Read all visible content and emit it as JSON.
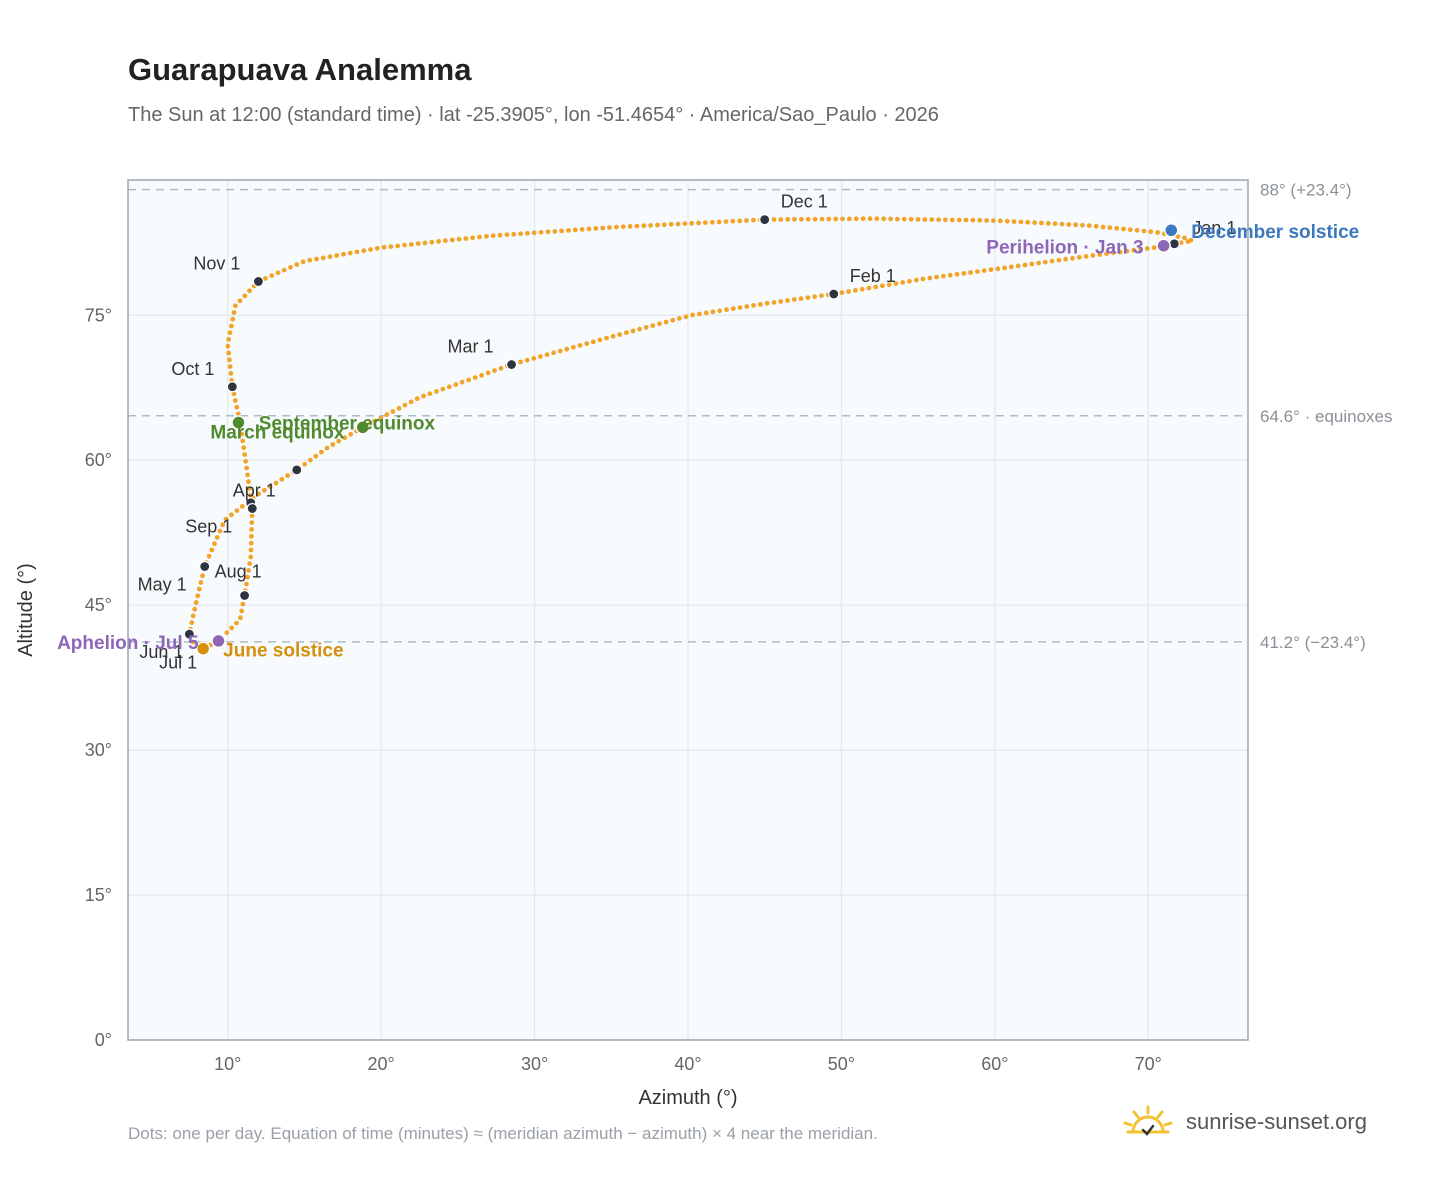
{
  "chart_data": {
    "type": "scatter",
    "title": "Guarapuava Analemma",
    "subtitle": "The Sun at 12:00 (standard time) · lat -25.3905°, lon -51.4654° · America/Sao_Paulo · 2026",
    "xlabel": "Azimuth (°)",
    "ylabel": "Altitude (°)",
    "xlim": [
      3.5,
      76.5
    ],
    "ylim": [
      0,
      89
    ],
    "xticks": [
      10,
      20,
      30,
      40,
      50,
      60,
      70
    ],
    "yticks": [
      0,
      15,
      30,
      45,
      60,
      75
    ],
    "xtick_labels": [
      "10°",
      "20°",
      "30°",
      "40°",
      "50°",
      "60°",
      "70°"
    ],
    "ytick_labels": [
      "0°",
      "15°",
      "30°",
      "45°",
      "60°",
      "75°"
    ],
    "grid": true,
    "reference_lines": [
      {
        "y": 88.0,
        "label": "88° (+23.4°)"
      },
      {
        "y": 64.6,
        "label": "64.6° · equinoxes"
      },
      {
        "y": 41.2,
        "label": "41.2° (−23.4°)"
      }
    ],
    "analemma_path": [
      [
        71.7,
        82.4
      ],
      [
        70.4,
        82.0
      ],
      [
        66.4,
        81.2
      ],
      [
        60.6,
        79.9
      ],
      [
        55.5,
        78.8
      ],
      [
        49.5,
        77.2
      ],
      [
        45.0,
        76.2
      ],
      [
        40.2,
        75.0
      ],
      [
        34.6,
        72.6
      ],
      [
        28.5,
        69.9
      ],
      [
        22.5,
        66.5
      ],
      [
        18.8,
        63.4
      ],
      [
        16.6,
        61.4
      ],
      [
        14.5,
        59.0
      ],
      [
        11.9,
        56.4
      ],
      [
        9.8,
        53.8
      ],
      [
        8.5,
        49.0
      ],
      [
        7.9,
        45.0
      ],
      [
        7.5,
        42.0
      ],
      [
        7.8,
        41.0
      ],
      [
        8.4,
        40.5
      ],
      [
        9.4,
        41.3
      ],
      [
        10.8,
        43.5
      ],
      [
        11.1,
        46.0
      ],
      [
        11.5,
        50.0
      ],
      [
        11.6,
        55.0
      ],
      [
        11.2,
        59.5
      ],
      [
        10.8,
        64.0
      ],
      [
        10.3,
        67.6
      ],
      [
        10.0,
        72.0
      ],
      [
        10.5,
        76.0
      ],
      [
        12.0,
        78.5
      ],
      [
        15.0,
        80.6
      ],
      [
        20.0,
        82.0
      ],
      [
        27.0,
        83.2
      ],
      [
        35.0,
        84.1
      ],
      [
        45.0,
        84.9
      ],
      [
        52.0,
        85.0
      ],
      [
        60.0,
        84.8
      ],
      [
        66.0,
        84.3
      ],
      [
        70.5,
        83.6
      ],
      [
        72.4,
        83.0
      ],
      [
        72.9,
        82.7
      ],
      [
        71.7,
        82.4
      ]
    ],
    "months": [
      {
        "label": "Jan 1",
        "x": 71.7,
        "y": 82.4
      },
      {
        "label": "Feb 1",
        "x": 49.5,
        "y": 77.2
      },
      {
        "label": "Mar 1",
        "x": 28.5,
        "y": 69.9
      },
      {
        "label": "Apr 1",
        "x": 11.5,
        "y": 55.6
      },
      {
        "label": "",
        "x": 14.5,
        "y": 59.0
      },
      {
        "label": "May 1",
        "x": 8.5,
        "y": 49.0
      },
      {
        "label": "Jun 1",
        "x": 7.5,
        "y": 42.0
      },
      {
        "label": "Jul 1",
        "x": 8.4,
        "y": 40.5
      },
      {
        "label": "Aug 1",
        "x": 11.1,
        "y": 46.0
      },
      {
        "label": "Sep 1",
        "x": 11.6,
        "y": 55.0
      },
      {
        "label": "Oct 1",
        "x": 10.3,
        "y": 67.6
      },
      {
        "label": "Nov 1",
        "x": 12.0,
        "y": 78.5
      },
      {
        "label": "Dec 1",
        "x": 45.0,
        "y": 84.9
      }
    ],
    "events": [
      {
        "label": "December solstice",
        "x": 71.5,
        "y": 83.8,
        "color": "#3b78bf"
      },
      {
        "label": "Perihelion · Jan 3",
        "x": 71.0,
        "y": 82.2,
        "color": "#8e66b8"
      },
      {
        "label": "March equinox",
        "x": 10.7,
        "y": 63.9,
        "color": "#4f8a2e"
      },
      {
        "label": "September equinox",
        "x": 18.8,
        "y": 63.4,
        "color": "#4f8a2e"
      },
      {
        "label": "June solstice",
        "x": 8.4,
        "y": 40.5,
        "color": "#d4900a"
      },
      {
        "label": "Aphelion · Jul 5",
        "x": 9.4,
        "y": 41.3,
        "color": "#8e66b8"
      }
    ],
    "colors": {
      "path": "#f2a42a",
      "month_dot": "#2f3540",
      "plot_bg": "#f8fbfd",
      "grid": "#e3e8ee",
      "frame": "#9aa5b1"
    }
  },
  "footnote": "Dots: one per day. Equation of time (minutes) ≈ (meridian azimuth − azimuth) × 4 near the meridian.",
  "brand": {
    "name": "sunrise-sunset.org",
    "icon": "sun-logo-icon"
  }
}
